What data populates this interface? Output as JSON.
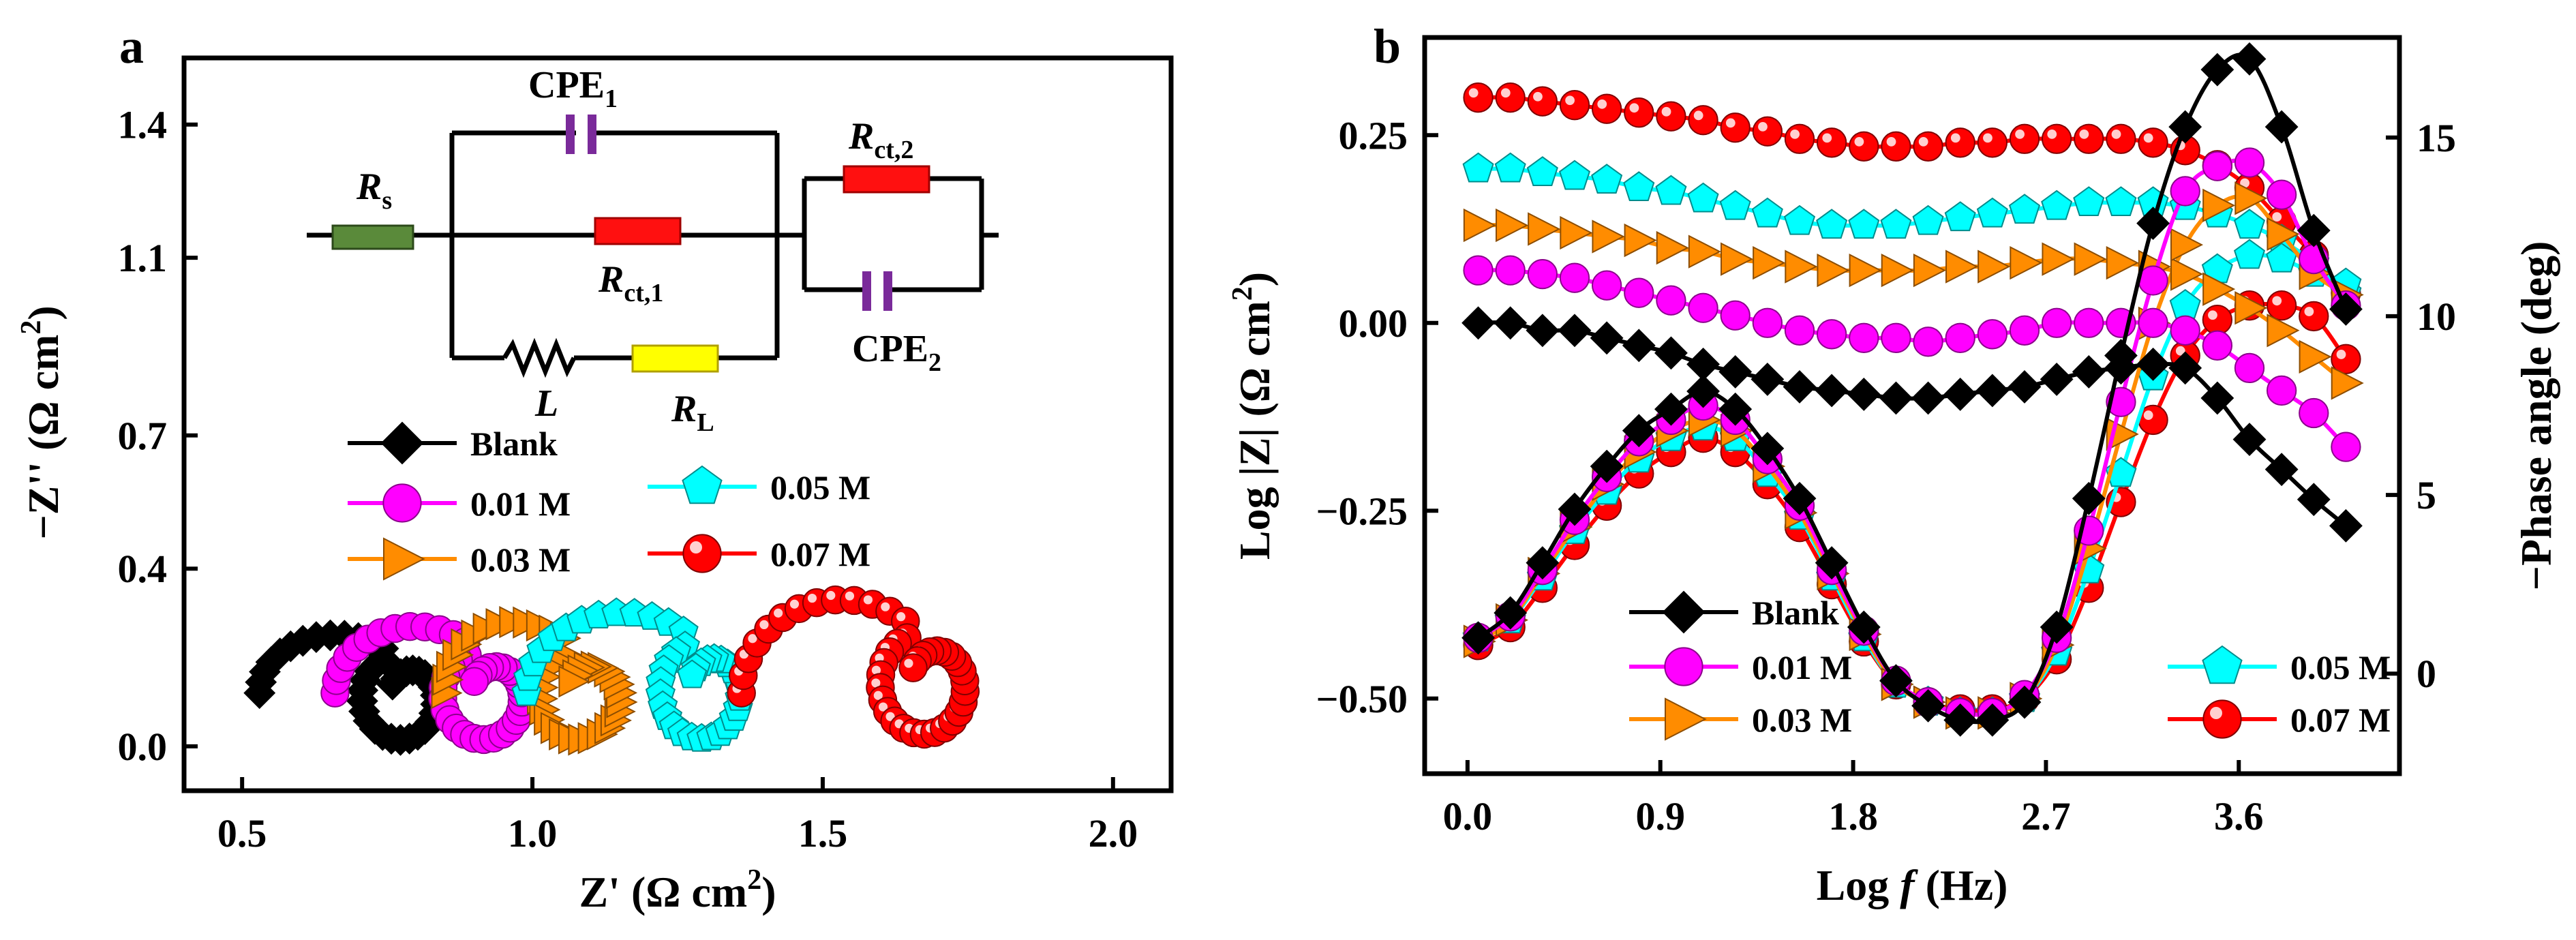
{
  "colors": {
    "blank": "#000000",
    "m001": "#ff00ff",
    "m003": "#ff8c00",
    "m005": "#00ffff",
    "m007": "#ff0000",
    "res_s": "#5a8a3a",
    "res_ct": "#ff1010",
    "res_L": "#ffff00",
    "cpe": "#7a2a9a"
  },
  "circuit": {
    "cpe1": {
      "main": "CPE",
      "sub": "1"
    },
    "cpe2": {
      "main": "CPE",
      "sub": "2"
    },
    "rs": {
      "main": "R",
      "sub": "s"
    },
    "rct1": {
      "main": "R",
      "sub": "ct,1"
    },
    "rct2": {
      "main": "R",
      "sub": "ct,2"
    },
    "l": {
      "main": "L"
    },
    "rl": {
      "main": "R",
      "sub": "L"
    }
  },
  "chart_data": [
    {
      "panel": "a",
      "type": "scatter",
      "xlabel": {
        "pre": "Z' (Ω cm",
        "sup": "2",
        "post": ")"
      },
      "ylabel": {
        "pre": "−Z'' (Ω cm",
        "sup": "2",
        "post": ")"
      },
      "xlim": [
        0.4,
        2.1
      ],
      "ylim": [
        -0.1,
        1.55
      ],
      "xticks": [
        0.5,
        1.0,
        1.5,
        2.0
      ],
      "xtick_labels": [
        "0.5",
        "1.0",
        "1.5",
        "2.0"
      ],
      "yticks": [
        0.0,
        0.4,
        0.7,
        1.1,
        1.4
      ],
      "ytick_labels": [
        "0.0",
        "0.4",
        "0.7",
        "1.1",
        "1.4"
      ],
      "legend": {
        "position": "middle-left",
        "columns": 2
      },
      "series": [
        {
          "key": "blank",
          "name": "Blank",
          "marker": "diamond",
          "start": 0.53,
          "R1": 0.26,
          "R2": 0.12,
          "apex": 0.25,
          "cusp": 0.18,
          "loopBottom": 0.02
        },
        {
          "key": "m001",
          "name": "0.01 M",
          "marker": "circle",
          "start": 0.66,
          "R1": 0.275,
          "R2": 0.13,
          "apex": 0.27,
          "cusp": 0.19,
          "loopBottom": 0.02
        },
        {
          "key": "m003",
          "name": "0.03 M",
          "marker": "triangle",
          "start": 0.85,
          "R1": 0.25,
          "R2": 0.13,
          "apex": 0.28,
          "cusp": 0.19,
          "loopBottom": 0.02
        },
        {
          "key": "m005",
          "name": "0.05 M",
          "marker": "pentagon",
          "start": 0.99,
          "R1": 0.33,
          "R2": 0.13,
          "apex": 0.3,
          "cusp": 0.21,
          "loopBottom": 0.02
        },
        {
          "key": "m007",
          "name": "0.07 M",
          "marker": "ball",
          "start": 1.36,
          "R1": 0.345,
          "R2": 0.14,
          "apex": 0.33,
          "cusp": 0.23,
          "loopBottom": 0.03
        }
      ]
    },
    {
      "panel": "b",
      "type": "line",
      "xlabel": {
        "pre": "Log ",
        "ital": "f",
        "post": " (Hz)"
      },
      "ylabel": {
        "pre": "Log |Z| (Ω cm",
        "sup": "2",
        "post": ")"
      },
      "y2label": "−Phase angle (deg)",
      "xlim": [
        -0.2,
        4.35
      ],
      "ylim": [
        -0.6,
        0.38
      ],
      "y2lim": [
        -2.8,
        17.8
      ],
      "xticks": [
        0.0,
        0.9,
        1.8,
        2.7,
        3.6
      ],
      "xtick_labels": [
        "0.0",
        "0.9",
        "1.8",
        "2.7",
        "3.6"
      ],
      "yticks": [
        -0.5,
        -0.25,
        0.0,
        0.25
      ],
      "ytick_labels": [
        "−0.50",
        "−0.25",
        "0.00",
        "0.25"
      ],
      "y2ticks": [
        0,
        5,
        10,
        15
      ],
      "y2tick_labels": [
        "0",
        "5",
        "10",
        "15"
      ],
      "legend": {
        "position": "bottom-center",
        "columns": 2
      },
      "x": [
        0.05,
        0.2,
        0.35,
        0.5,
        0.65,
        0.8,
        0.95,
        1.1,
        1.25,
        1.4,
        1.55,
        1.7,
        1.85,
        2.0,
        2.15,
        2.3,
        2.45,
        2.6,
        2.75,
        2.9,
        3.05,
        3.2,
        3.35,
        3.5,
        3.65,
        3.8,
        3.95,
        4.1
      ],
      "series": [
        {
          "key": "blank",
          "name": "Blank",
          "marker": "diamond",
          "logz": [
            0.0,
            0.0,
            -0.01,
            -0.01,
            -0.02,
            -0.03,
            -0.04,
            -0.055,
            -0.065,
            -0.075,
            -0.085,
            -0.09,
            -0.095,
            -0.1,
            -0.1,
            -0.095,
            -0.09,
            -0.085,
            -0.075,
            -0.065,
            -0.06,
            -0.055,
            -0.06,
            -0.1,
            -0.155,
            -0.195,
            -0.235,
            -0.27
          ],
          "phase": [
            1.0,
            1.7,
            3.1,
            4.6,
            5.8,
            6.8,
            7.4,
            7.9,
            7.4,
            6.3,
            4.9,
            3.1,
            1.3,
            -0.2,
            -0.9,
            -1.3,
            -1.3,
            -0.8,
            1.3,
            4.9,
            8.9,
            12.6,
            15.3,
            16.9,
            17.2,
            15.3,
            12.4,
            10.2
          ]
        },
        {
          "key": "m001",
          "name": "0.01 M",
          "marker": "circle",
          "logz": [
            0.07,
            0.07,
            0.065,
            0.06,
            0.05,
            0.04,
            0.03,
            0.02,
            0.01,
            0.0,
            -0.01,
            -0.015,
            -0.02,
            -0.02,
            -0.025,
            -0.02,
            -0.015,
            -0.01,
            0.0,
            0.0,
            0.0,
            0.0,
            -0.01,
            -0.03,
            -0.06,
            -0.09,
            -0.12,
            -0.165
          ],
          "phase": [
            1.0,
            1.6,
            2.9,
            4.3,
            5.5,
            6.5,
            7.1,
            7.5,
            7.1,
            6.0,
            4.7,
            2.9,
            1.2,
            -0.2,
            -0.8,
            -1.1,
            -1.1,
            -0.6,
            1.0,
            4.0,
            7.6,
            11.0,
            13.5,
            14.2,
            14.3,
            13.4,
            11.6,
            10.3
          ]
        },
        {
          "key": "m003",
          "name": "0.03 M",
          "marker": "triangle",
          "logz": [
            0.13,
            0.13,
            0.125,
            0.12,
            0.115,
            0.11,
            0.1,
            0.095,
            0.085,
            0.08,
            0.075,
            0.07,
            0.07,
            0.07,
            0.07,
            0.075,
            0.075,
            0.08,
            0.085,
            0.085,
            0.08,
            0.075,
            0.065,
            0.045,
            0.02,
            -0.01,
            -0.045,
            -0.08
          ],
          "phase": [
            0.9,
            1.5,
            2.8,
            4.1,
            5.3,
            6.2,
            6.8,
            7.1,
            6.8,
            5.8,
            4.5,
            2.8,
            1.1,
            -0.3,
            -0.8,
            -1.1,
            -1.1,
            -0.7,
            0.8,
            3.5,
            6.7,
            9.8,
            12.0,
            13.1,
            13.3,
            12.3,
            11.2,
            10.6
          ]
        },
        {
          "key": "m005",
          "name": "0.05 M",
          "marker": "pentagon",
          "logz": [
            0.205,
            0.205,
            0.2,
            0.195,
            0.19,
            0.18,
            0.175,
            0.165,
            0.155,
            0.145,
            0.135,
            0.13,
            0.13,
            0.13,
            0.135,
            0.14,
            0.145,
            0.15,
            0.155,
            0.16,
            0.16,
            0.16,
            0.155,
            0.145,
            0.13,
            0.11,
            0.08,
            0.04
          ],
          "phase": [
            1.0,
            1.5,
            2.7,
            4.0,
            5.1,
            6.0,
            6.6,
            6.9,
            6.6,
            5.6,
            4.4,
            2.7,
            1.0,
            -0.3,
            -0.8,
            -1.1,
            -1.1,
            -0.7,
            0.6,
            2.9,
            5.6,
            8.3,
            10.3,
            11.3,
            11.7,
            11.6,
            11.2,
            10.9
          ]
        },
        {
          "key": "m007",
          "name": "0.07 M",
          "marker": "ball",
          "logz": [
            0.3,
            0.3,
            0.295,
            0.29,
            0.285,
            0.28,
            0.275,
            0.27,
            0.26,
            0.255,
            0.245,
            0.24,
            0.235,
            0.235,
            0.235,
            0.24,
            0.24,
            0.245,
            0.245,
            0.245,
            0.245,
            0.24,
            0.23,
            0.21,
            0.18,
            0.135,
            0.09,
            0.04
          ],
          "phase": [
            0.8,
            1.3,
            2.4,
            3.6,
            4.7,
            5.6,
            6.2,
            6.6,
            6.2,
            5.3,
            4.1,
            2.5,
            0.9,
            -0.3,
            -0.8,
            -1.0,
            -1.0,
            -0.7,
            0.4,
            2.4,
            4.8,
            7.1,
            8.9,
            9.9,
            10.3,
            10.3,
            10.0,
            8.8
          ]
        }
      ]
    }
  ]
}
